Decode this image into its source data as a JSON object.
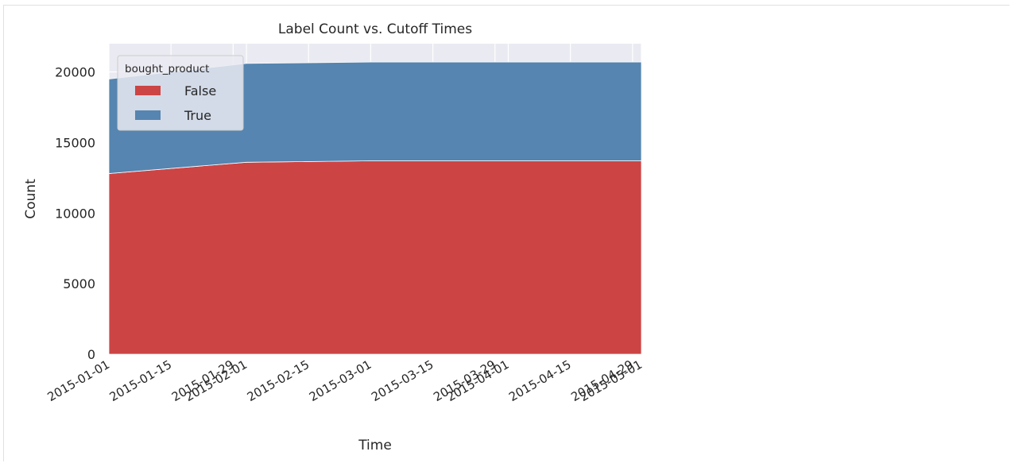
{
  "chart_data": {
    "type": "area",
    "stacked": true,
    "title": "Label Count vs. Cutoff Times",
    "xlabel": "Time",
    "ylabel": "Count",
    "x": [
      "2015-01-01",
      "2015-02-01",
      "2015-03-01",
      "2015-04-01",
      "2015-05-01"
    ],
    "xlim": [
      "2015-01-01",
      "2015-05-01"
    ],
    "ylim": [
      0,
      22000
    ],
    "yticks": [
      0,
      5000,
      10000,
      15000,
      20000
    ],
    "xticks": [
      "2015-01-01",
      "2015-01-15",
      "2015-01-29",
      "2015-02-01",
      "2015-02-15",
      "2015-03-01",
      "2015-03-15",
      "2015-03-29",
      "2015-04-01",
      "2015-04-15",
      "2015-04-29",
      "2015-05-01"
    ],
    "grid": true,
    "legend": {
      "title": "bought_product",
      "position": "top-left"
    },
    "series": [
      {
        "name": "False",
        "color": "#cc4444",
        "values": [
          12800,
          13600,
          13700,
          13700,
          13700
        ]
      },
      {
        "name": "True",
        "color": "#5585b0",
        "values": [
          6700,
          7000,
          7000,
          7000,
          7000
        ]
      }
    ]
  }
}
